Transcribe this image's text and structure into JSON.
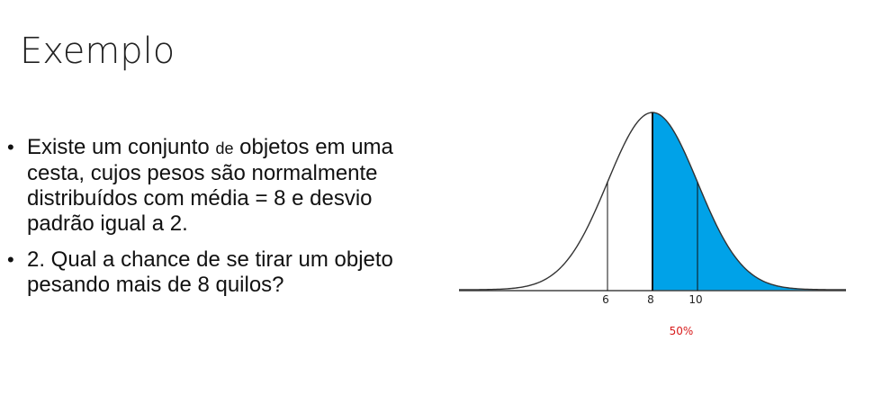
{
  "slide": {
    "title": "Exemplo",
    "bullets": [
      {
        "parts": [
          "Existe um conjunto ",
          "de",
          " objetos em uma cesta, cujos pesos são normalmente distribuídos com média = 8 e desvio padrão igual a 2."
        ]
      },
      {
        "text": "2. Qual a chance de se tirar um objeto pesando mais de 8 quilos?"
      }
    ],
    "bullet_symbol": "•"
  },
  "diagram": {
    "mean": 8,
    "sd": 2,
    "shaded_region": "x > 8",
    "shade_color": "#00a2e8",
    "tick_labels": [
      "6",
      "8",
      "10"
    ],
    "area_label": "50%",
    "area_label_color": "#d81b1b"
  }
}
